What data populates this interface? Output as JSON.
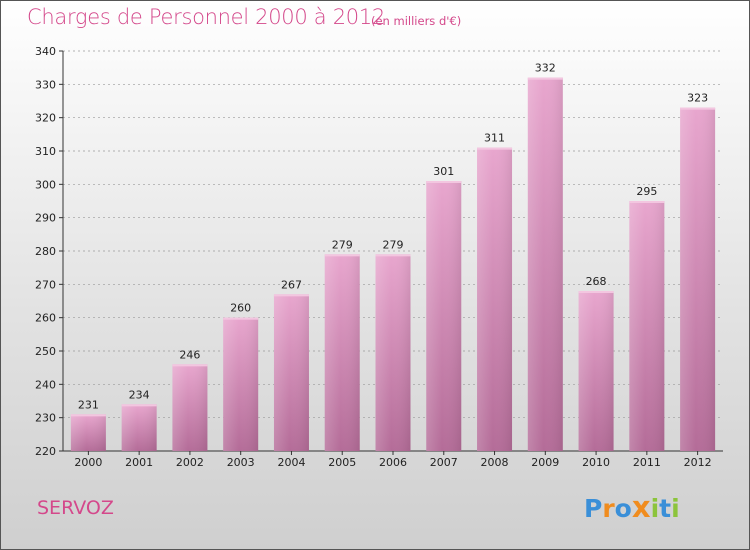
{
  "header": {
    "title": "Charges de Personnel 2000 à 2012",
    "subtitle": "(en milliers d'€)"
  },
  "footer": {
    "commune": "SERVOZ",
    "logo_letters": [
      {
        "char": "P",
        "color": "#3a8fd8"
      },
      {
        "char": "r",
        "color": "#f08c1e"
      },
      {
        "char": "o",
        "color": "#3a8fd8"
      },
      {
        "char": "x",
        "color": "#f08c1e"
      },
      {
        "char": "i",
        "color": "#8cc43c"
      },
      {
        "char": "t",
        "color": "#3a8fd8"
      },
      {
        "char": "i",
        "color": "#8cc43c"
      }
    ]
  },
  "colors": {
    "accent": "#d4488b",
    "bar_top": "#e8a6ce",
    "bar_bottom": "#b46c98"
  },
  "chart_data": {
    "type": "bar",
    "categories": [
      "2000",
      "2001",
      "2002",
      "2003",
      "2004",
      "2005",
      "2006",
      "2007",
      "2008",
      "2009",
      "2010",
      "2011",
      "2012"
    ],
    "values": [
      231,
      234,
      246,
      260,
      267,
      279,
      279,
      301,
      311,
      332,
      268,
      295,
      323
    ],
    "ylim": [
      220,
      340
    ],
    "yticks": [
      220,
      230,
      240,
      250,
      260,
      270,
      280,
      290,
      300,
      310,
      320,
      330,
      340
    ],
    "grid": true,
    "data_labels": true
  }
}
